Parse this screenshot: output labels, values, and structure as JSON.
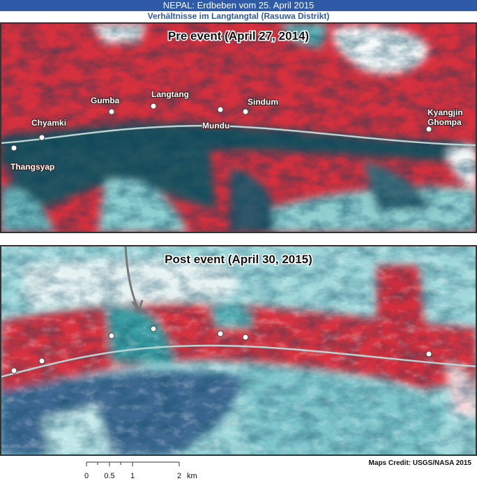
{
  "header": {
    "title": "NEPAL: Erdbeben vom 25. April 2015",
    "subtitle": "Verhältnisse im Langtangtal (Rasuwa Distrikt)"
  },
  "panels": [
    {
      "title": "Pre event (April 27, 2014)",
      "places": [
        {
          "label": [
            "Thangsyap"
          ]
        },
        {
          "label": [
            "Chyamki"
          ]
        },
        {
          "label": [
            "Gumba"
          ]
        },
        {
          "label": [
            "Langtang"
          ]
        },
        {
          "label": [
            "Mundu"
          ]
        },
        {
          "label": [
            "Sindum"
          ]
        },
        {
          "label": [
            "Kyangjin",
            "Ghompa"
          ]
        }
      ]
    },
    {
      "title": "Post event (April 30, 2015)"
    }
  ],
  "scale_bar": {
    "labels": [
      "0",
      "0.5",
      "1",
      "2"
    ],
    "unit": "km"
  },
  "credit": "Maps Credit: USGS/NASA 2015"
}
